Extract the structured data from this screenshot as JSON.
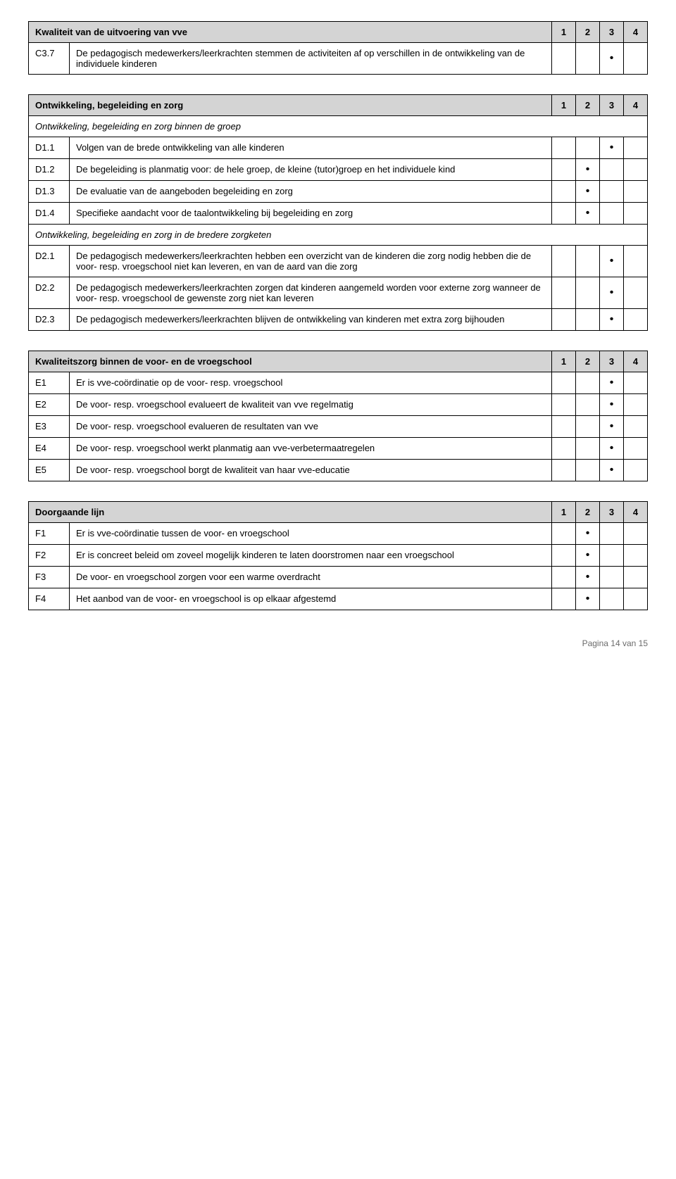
{
  "tables": [
    {
      "title": "Kwaliteit van de uitvoering van vve",
      "cols": [
        "1",
        "2",
        "3",
        "4"
      ],
      "rows": [
        {
          "code": "C3.7",
          "text": "De pedagogisch medewerkers/leerkrachten stemmen de activiteiten af op verschillen in de ontwikkeling van de individuele kinderen",
          "dot": 2
        }
      ]
    },
    {
      "title": "Ontwikkeling, begeleiding en zorg",
      "cols": [
        "1",
        "2",
        "3",
        "4"
      ],
      "sections": [
        {
          "subhead": "Ontwikkeling, begeleiding en zorg binnen de groep",
          "rows": [
            {
              "code": "D1.1",
              "text": "Volgen van de brede ontwikkeling van alle kinderen",
              "dot": 2
            },
            {
              "code": "D1.2",
              "text": "De begeleiding is planmatig voor: de hele groep, de kleine (tutor)groep en het individuele kind",
              "dot": 1
            },
            {
              "code": "D1.3",
              "text": "De evaluatie van de aangeboden begeleiding en zorg",
              "dot": 1
            },
            {
              "code": "D1.4",
              "text": "Specifieke aandacht voor de taalontwikkeling bij begeleiding en zorg",
              "dot": 1
            }
          ]
        },
        {
          "subhead": "Ontwikkeling, begeleiding en zorg in de bredere zorgketen",
          "rows": [
            {
              "code": "D2.1",
              "text": "De pedagogisch medewerkers/leerkrachten hebben een overzicht van de kinderen die zorg nodig hebben die de voor- resp. vroegschool niet kan leveren, en van de aard van die zorg",
              "dot": 2
            },
            {
              "code": "D2.2",
              "text": "De pedagogisch medewerkers/leerkrachten zorgen dat kinderen aangemeld worden voor externe zorg wanneer de voor- resp. vroegschool de gewenste zorg niet kan leveren",
              "dot": 2
            },
            {
              "code": "D2.3",
              "text": "De pedagogisch medewerkers/leerkrachten blijven de ontwikkeling van kinderen met extra zorg bijhouden",
              "dot": 2
            }
          ]
        }
      ]
    },
    {
      "title": "Kwaliteitszorg binnen de voor- en de vroegschool",
      "cols": [
        "1",
        "2",
        "3",
        "4"
      ],
      "rows": [
        {
          "code": "E1",
          "text": "Er is vve-coördinatie op de voor- resp. vroegschool",
          "dot": 2
        },
        {
          "code": "E2",
          "text": "De voor- resp. vroegschool evalueert de kwaliteit van vve regelmatig",
          "dot": 2
        },
        {
          "code": "E3",
          "text": "De voor- resp. vroegschool evalueren de resultaten van vve",
          "dot": 2
        },
        {
          "code": "E4",
          "text": "De voor- resp. vroegschool werkt planmatig aan vve-verbetermaatregelen",
          "dot": 2
        },
        {
          "code": "E5",
          "text": "De voor- resp. vroegschool borgt de kwaliteit van haar vve-educatie",
          "dot": 2
        }
      ]
    },
    {
      "title": "Doorgaande lijn",
      "cols": [
        "1",
        "2",
        "3",
        "4"
      ],
      "rows": [
        {
          "code": "F1",
          "text": "Er is vve-coördinatie tussen de voor- en vroegschool",
          "dot": 1
        },
        {
          "code": "F2",
          "text": "Er is concreet beleid om zoveel mogelijk kinderen te laten doorstromen naar een vroegschool",
          "dot": 1
        },
        {
          "code": "F3",
          "text": "De voor- en vroegschool zorgen voor een warme overdracht",
          "dot": 1
        },
        {
          "code": "F4",
          "text": "Het aanbod van de voor- en vroegschool is op elkaar afgestemd",
          "dot": 1
        }
      ]
    }
  ],
  "footer": "Pagina 14 van 15",
  "dot_char": "•",
  "colors": {
    "header_bg": "#d4d4d4",
    "border": "#000000",
    "text": "#000000",
    "footer": "#6b6b6b"
  }
}
